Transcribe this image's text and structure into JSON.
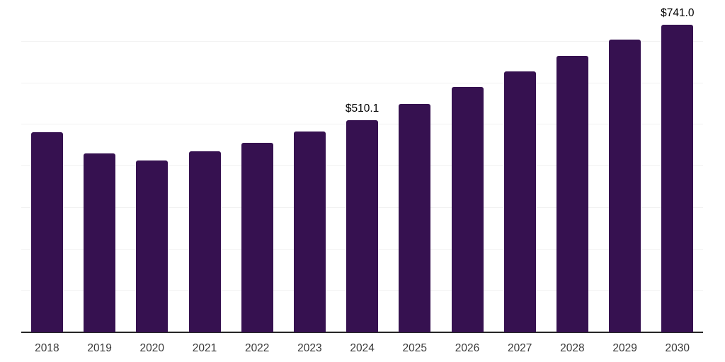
{
  "chart_data": {
    "type": "bar",
    "title": "",
    "xlabel": "",
    "ylabel": "",
    "categories": [
      "2018",
      "2019",
      "2020",
      "2021",
      "2022",
      "2023",
      "2024",
      "2025",
      "2026",
      "2027",
      "2028",
      "2029",
      "2030"
    ],
    "values": [
      481,
      430,
      414,
      436,
      457,
      483,
      510.1,
      550,
      590,
      628,
      665,
      704,
      741.0
    ],
    "data_labels": [
      null,
      null,
      null,
      null,
      null,
      null,
      "$510.1",
      null,
      null,
      null,
      null,
      null,
      "$741.0"
    ],
    "ylim": [
      0,
      800
    ],
    "grid_step": 100,
    "grid": "horizontal",
    "legend_position": "none",
    "y_tick_labels_visible": false
  },
  "colors": {
    "bar": "#361150",
    "gridline": "#f2f2f2",
    "axis_line": "#262626",
    "tick_label": "#3a3a3a",
    "data_label": "#000000",
    "background": "#ffffff"
  }
}
